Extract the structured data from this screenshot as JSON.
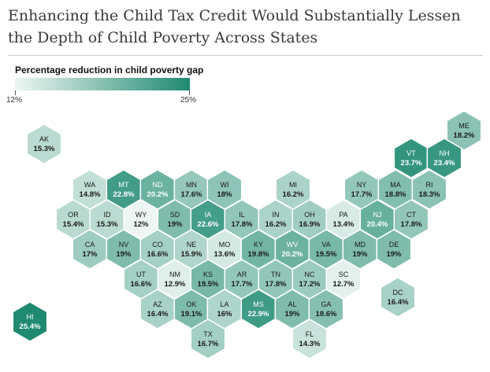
{
  "title": "Enhancing the Child Tax Credit Would Substantially Lessen the Depth of Child Poverty Across States",
  "legend": {
    "title": "Percentage reduction in child poverty gap",
    "min_label": "12%",
    "max_label": "25%",
    "min": 12,
    "max": 25,
    "color_low": "#eef6f3",
    "color_high": "#1f8a70"
  },
  "states": [
    {
      "code": "AK",
      "value": "15.3%",
      "pct": 15.3
    },
    {
      "code": "ME",
      "value": "18.2%",
      "pct": 18.2
    },
    {
      "code": "VT",
      "value": "23.7%",
      "pct": 23.7
    },
    {
      "code": "NH",
      "value": "23.4%",
      "pct": 23.4
    },
    {
      "code": "WA",
      "value": "14.8%",
      "pct": 14.8
    },
    {
      "code": "MT",
      "value": "22.8%",
      "pct": 22.8
    },
    {
      "code": "ND",
      "value": "20.2%",
      "pct": 20.2
    },
    {
      "code": "MN",
      "value": "17.6%",
      "pct": 17.6
    },
    {
      "code": "WI",
      "value": "18%",
      "pct": 18
    },
    {
      "code": "MI",
      "value": "16.2%",
      "pct": 16.2
    },
    {
      "code": "NY",
      "value": "17.7%",
      "pct": 17.7
    },
    {
      "code": "MA",
      "value": "18.8%",
      "pct": 18.8
    },
    {
      "code": "RI",
      "value": "18.3%",
      "pct": 18.3
    },
    {
      "code": "OR",
      "value": "15.4%",
      "pct": 15.4
    },
    {
      "code": "ID",
      "value": "15.3%",
      "pct": 15.3
    },
    {
      "code": "WY",
      "value": "12%",
      "pct": 12
    },
    {
      "code": "SD",
      "value": "19%",
      "pct": 19
    },
    {
      "code": "IA",
      "value": "22.6%",
      "pct": 22.6
    },
    {
      "code": "IL",
      "value": "17.8%",
      "pct": 17.8
    },
    {
      "code": "IN",
      "value": "16.2%",
      "pct": 16.2
    },
    {
      "code": "OH",
      "value": "16.9%",
      "pct": 16.9
    },
    {
      "code": "PA",
      "value": "13.4%",
      "pct": 13.4
    },
    {
      "code": "NJ",
      "value": "20.4%",
      "pct": 20.4
    },
    {
      "code": "CT",
      "value": "17.8%",
      "pct": 17.8
    },
    {
      "code": "CA",
      "value": "17%",
      "pct": 17
    },
    {
      "code": "NV",
      "value": "19%",
      "pct": 19
    },
    {
      "code": "CO",
      "value": "16.6%",
      "pct": 16.6
    },
    {
      "code": "NE",
      "value": "15.9%",
      "pct": 15.9
    },
    {
      "code": "MO",
      "value": "13.6%",
      "pct": 13.6
    },
    {
      "code": "KY",
      "value": "19.8%",
      "pct": 19.8
    },
    {
      "code": "WV",
      "value": "20.2%",
      "pct": 20.2
    },
    {
      "code": "VA",
      "value": "19.5%",
      "pct": 19.5
    },
    {
      "code": "MD",
      "value": "19%",
      "pct": 19
    },
    {
      "code": "DE",
      "value": "19%",
      "pct": 19
    },
    {
      "code": "UT",
      "value": "16.6%",
      "pct": 16.6
    },
    {
      "code": "NM",
      "value": "12.9%",
      "pct": 12.9
    },
    {
      "code": "KS",
      "value": "19.5%",
      "pct": 19.5
    },
    {
      "code": "AR",
      "value": "17.7%",
      "pct": 17.7
    },
    {
      "code": "TN",
      "value": "17.8%",
      "pct": 17.8
    },
    {
      "code": "NC",
      "value": "17.2%",
      "pct": 17.2
    },
    {
      "code": "SC",
      "value": "12.7%",
      "pct": 12.7
    },
    {
      "code": "DC",
      "value": "16.4%",
      "pct": 16.4
    },
    {
      "code": "AZ",
      "value": "16.4%",
      "pct": 16.4
    },
    {
      "code": "OK",
      "value": "19.1%",
      "pct": 19.1
    },
    {
      "code": "LA",
      "value": "16%",
      "pct": 16
    },
    {
      "code": "MS",
      "value": "22.9%",
      "pct": 22.9
    },
    {
      "code": "AL",
      "value": "19%",
      "pct": 19
    },
    {
      "code": "GA",
      "value": "18.6%",
      "pct": 18.6
    },
    {
      "code": "HI",
      "value": "25.4%",
      "pct": 25.4
    },
    {
      "code": "TX",
      "value": "16.7%",
      "pct": 16.7
    },
    {
      "code": "FL",
      "value": "14.3%",
      "pct": 14.3
    }
  ]
}
